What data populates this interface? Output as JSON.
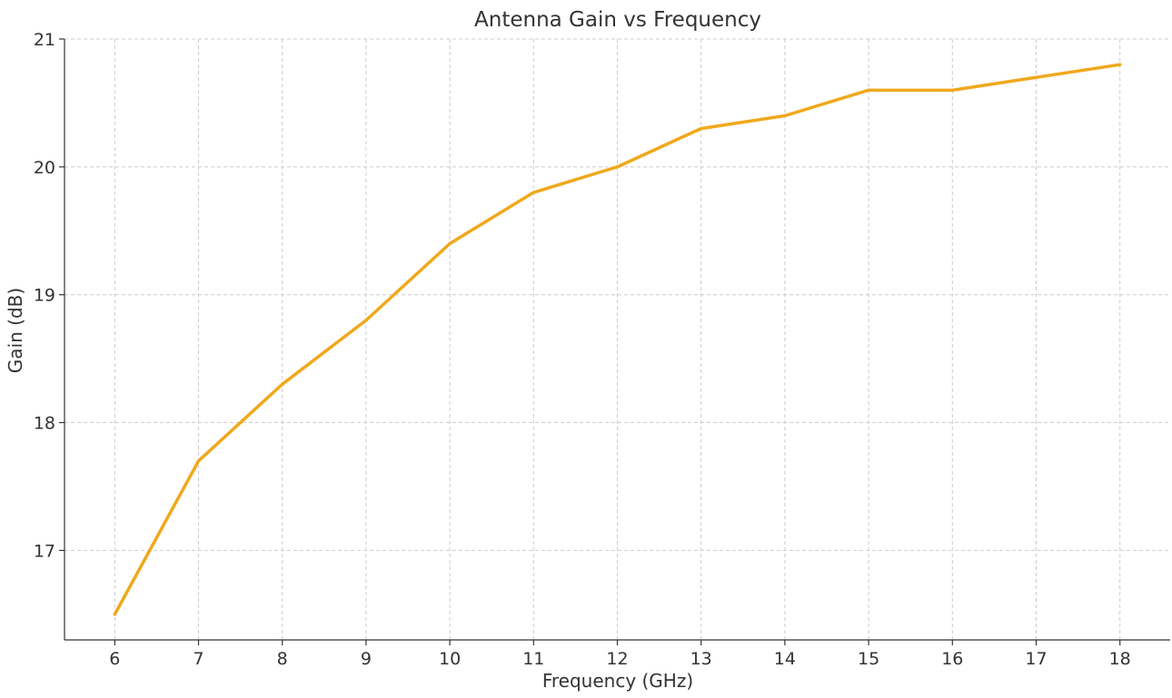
{
  "chart_data": {
    "type": "line",
    "title": "Antenna Gain vs Frequency",
    "xlabel": "Frequency (GHz)",
    "ylabel": "Gain (dB)",
    "x": [
      6,
      7,
      8,
      9,
      10,
      11,
      12,
      13,
      14,
      15,
      16,
      17,
      18
    ],
    "series": [
      {
        "values": [
          16.5,
          17.7,
          18.3,
          18.8,
          19.4,
          19.8,
          20.0,
          20.3,
          20.4,
          20.6,
          20.6,
          20.7,
          20.8
        ],
        "color": "#f0a81c"
      }
    ],
    "xlim": [
      5.4,
      18.6
    ],
    "ylim": [
      16.3,
      21.0
    ],
    "xticks": [
      6,
      7,
      8,
      9,
      10,
      11,
      12,
      13,
      14,
      15,
      16,
      17,
      18
    ],
    "yticks": [
      17,
      18,
      19,
      20,
      21
    ],
    "grid": true,
    "legend": "none"
  }
}
